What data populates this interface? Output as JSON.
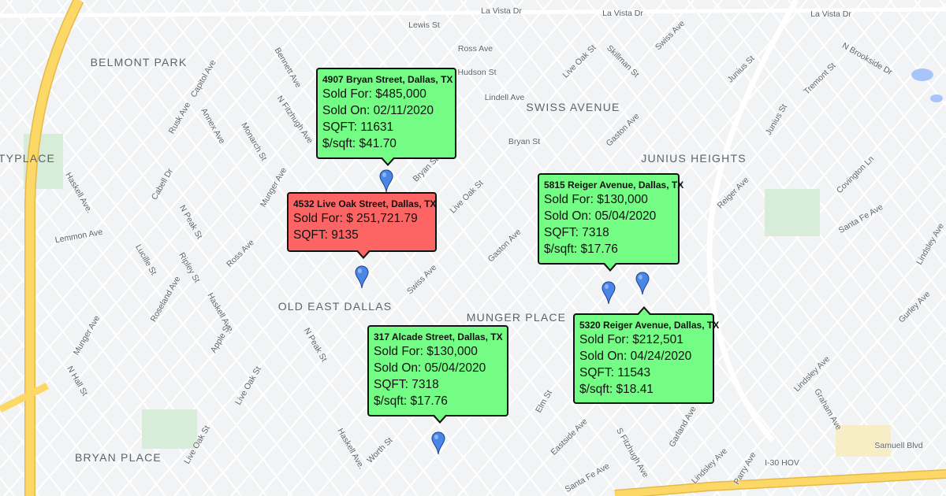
{
  "map": {
    "colors": {
      "background": "#f1f3f4",
      "road": "#ffffff",
      "highway": "#f9d54a",
      "park": "#c8e6c9",
      "water": "#a7c5f9",
      "popup_sold": "#74fd84",
      "popup_unsold": "#fd6464",
      "pin": "#4a86e8"
    },
    "areas": [
      "BELMONT PARK",
      "SWISS AVENUE",
      "JUNIUS HEIGHTS",
      "OLD EAST DALLAS",
      "MUNGER PLACE",
      "BRYAN PLACE",
      "TYPLACE"
    ],
    "streets": [
      "La Vista Dr",
      "La Vista Dr",
      "La Vista Dr",
      "Lewis St",
      "Ross Ave",
      "Hudson St",
      "Lindell Ave",
      "Bryan St",
      "Live Oak St",
      "Skillman St",
      "Gaston Ave",
      "Swiss Ave",
      "Junius St",
      "Bennett Ave",
      "N Fitzhugh Ave",
      "Haskell Ave.",
      "N Peak St",
      "Lemmon Ave",
      "Ross Ave",
      "Gaston Ave",
      "Live Oak St",
      "Swiss Ave",
      "Haskell Ave.",
      "N Peak St",
      "Live Oak St",
      "Live Oak St",
      "Haskell Ave.",
      "Eastside Ave",
      "Santa Fe Ave",
      "S Fitzhugh Ave",
      "Lindsley Ave",
      "Lindsley Ave",
      "Lindsley Ave",
      "Samuell Blvd",
      "I-30 HOV",
      "Santa Fe Ave",
      "Covington Ln",
      "N Hall St",
      "Elm St",
      "Reiger Ave",
      "Tremont St",
      "N Brookside Dr",
      "Monarch St",
      "Munger Ave",
      "Capitol Ave",
      "Rusk Ave",
      "Annex Ave",
      "Cabell Dr",
      "Lucille St",
      "Ripley St",
      "Roseland Ave",
      "Munger Ave",
      "Bryan St",
      "Apple St",
      "Worth St",
      "Gurley Ave",
      "Junius St",
      "Graham Ave",
      "Parry Ave",
      "Garland Ave"
    ]
  },
  "pins": [
    {
      "name": "4907 Bryan Street"
    },
    {
      "name": "4532 Live Oak Street"
    },
    {
      "name": "5815 Reiger Avenue"
    },
    {
      "name": "5320 Reiger Avenue"
    },
    {
      "name": "317 Alcade Street"
    }
  ],
  "popups": [
    {
      "title": "4907 Bryan Street, Dallas, TX",
      "status": "sold",
      "lines": [
        "Sold For: $485,000",
        "Sold On: 02/11/2020",
        "SQFT: 11631",
        "$/sqft: $41.70"
      ]
    },
    {
      "title": "4532 Live Oak Street, Dallas, TX",
      "status": "unsold",
      "lines": [
        "Sold For: $ 251,721.79",
        "SQFT: 9135"
      ]
    },
    {
      "title": "5815 Reiger Avenue, Dallas, TX",
      "status": "sold",
      "lines": [
        "Sold For: $130,000",
        "Sold On: 05/04/2020",
        "SQFT: 7318",
        "$/sqft: $17.76"
      ]
    },
    {
      "title": "5320 Reiger Avenue, Dallas, TX",
      "status": "sold",
      "lines": [
        "Sold For: $212,501",
        "Sold On: 04/24/2020",
        "SQFT: 11543",
        "$/sqft: $18.41"
      ]
    },
    {
      "title": "317 Alcade Street, Dallas, TX",
      "status": "sold",
      "lines": [
        "Sold For: $130,000",
        "Sold On: 05/04/2020",
        "SQFT: 7318",
        "$/sqft: $17.76"
      ]
    }
  ]
}
